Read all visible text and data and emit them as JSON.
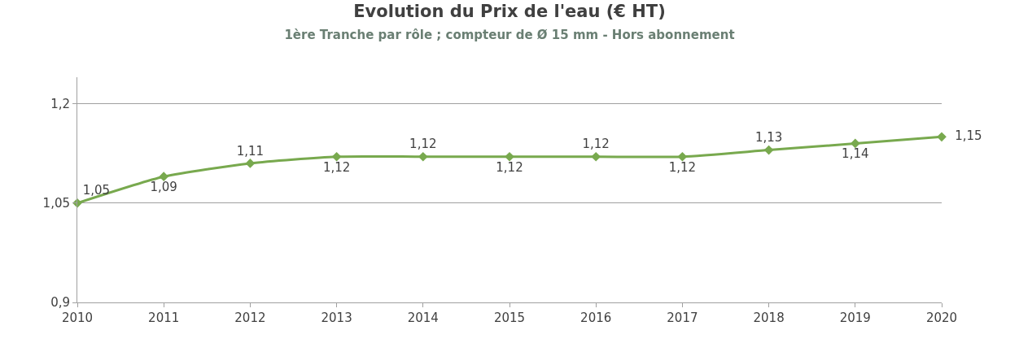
{
  "chart_data": {
    "type": "line",
    "title": "Evolution du Prix de l'eau (€ HT)",
    "subtitle": "1ère Tranche par rôle ; compteur de Ø 15 mm - Hors abonnement",
    "x": [
      2010,
      2011,
      2012,
      2013,
      2014,
      2015,
      2016,
      2017,
      2018,
      2019,
      2020
    ],
    "series": [
      {
        "color": "#78a94e",
        "values": [
          1.05,
          1.09,
          1.11,
          1.12,
          1.12,
          1.12,
          1.12,
          1.12,
          1.13,
          1.14,
          1.15
        ],
        "value_labels": [
          "1,05",
          "1,09",
          "1,11",
          "1,12",
          "1,12",
          "1,12",
          "1,12",
          "1,12",
          "1,13",
          "1,14",
          "1,15"
        ]
      }
    ],
    "xlim": [
      2010,
      2020
    ],
    "xticks": [
      2010,
      2011,
      2012,
      2013,
      2014,
      2015,
      2016,
      2017,
      2018,
      2019,
      2020
    ],
    "ylim": [
      0.9,
      1.24
    ],
    "yticks": [
      {
        "value": 0.9,
        "label": "0,9"
      },
      {
        "value": 1.05,
        "label": "1,05"
      },
      {
        "value": 1.2,
        "label": "1,2"
      }
    ],
    "grid": "y",
    "marker": "diamond",
    "line_style": "solid"
  }
}
